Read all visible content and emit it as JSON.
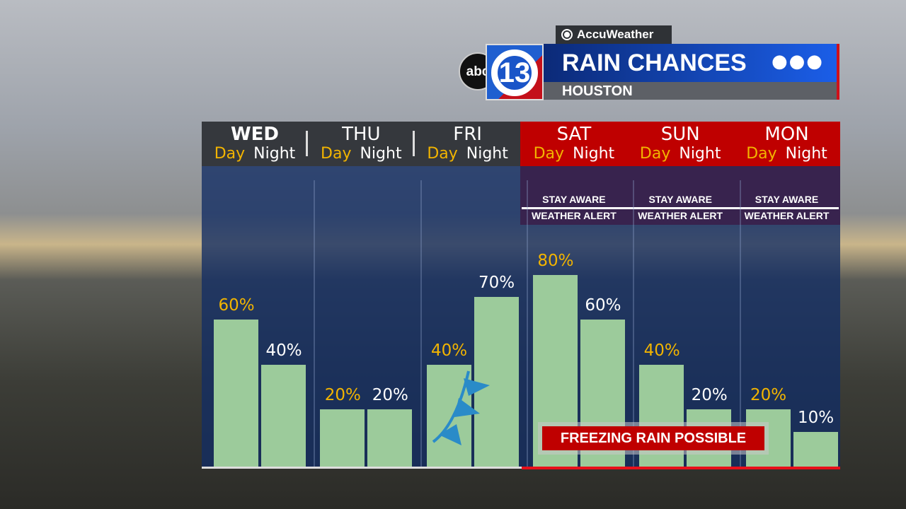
{
  "brand": {
    "provider": "AccuWeather",
    "station_logo": "abc 13"
  },
  "header": {
    "title": "RAIN CHANCES",
    "subtitle": "HOUSTON",
    "menu_icon": "more-dots-icon"
  },
  "colors": {
    "bar": "#9ccb9b",
    "alert_red": "#bf0000",
    "day_label": "#f2b400",
    "night_label": "#ffffff"
  },
  "alert": {
    "line1": "STAY AWARE",
    "line2": "WEATHER ALERT"
  },
  "period_labels": {
    "day": "Day",
    "night": "Night"
  },
  "callout": "FREEZING RAIN POSSIBLE",
  "chart_data": {
    "type": "bar",
    "title": "RAIN CHANCES",
    "categories": [
      "WED",
      "THU",
      "FRI",
      "SAT",
      "SUN",
      "MON"
    ],
    "series": [
      {
        "name": "Day",
        "values": [
          60,
          20,
          40,
          80,
          40,
          20
        ]
      },
      {
        "name": "Night",
        "values": [
          40,
          20,
          70,
          60,
          20,
          10
        ]
      }
    ],
    "labels": {
      "Day": [
        "60%",
        "20%",
        "40%",
        "80%",
        "40%",
        "20%"
      ],
      "Night": [
        "40%",
        "20%",
        "70%",
        "60%",
        "20%",
        "10%"
      ]
    },
    "alert_days": [
      "SAT",
      "SUN",
      "MON"
    ],
    "unit": "%",
    "ylim": [
      0,
      100
    ]
  }
}
